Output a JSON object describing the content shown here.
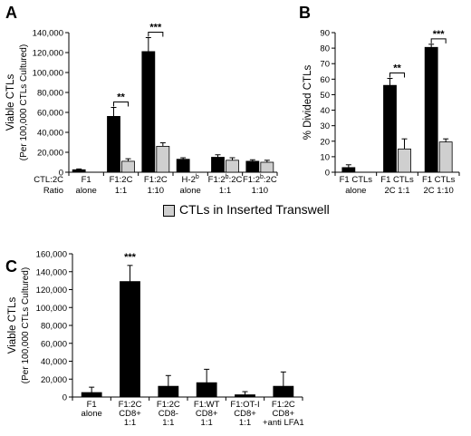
{
  "colors": {
    "black_bar": "#000000",
    "gray_bar": "#cfcfcf",
    "axis": "#000000"
  },
  "legend": {
    "label": "CTLs in Inserted Transwell"
  },
  "chart_data": [
    {
      "id": "A",
      "panel_letter": "A",
      "type": "bar",
      "ylabel": "Viable CTLs",
      "ylabel_sub": "(Per 100,000 CTLs Cultured)",
      "ylim": [
        0,
        140000
      ],
      "yticks": [
        "0",
        "20,000",
        "40,000",
        "60,000",
        "80,000",
        "100,000",
        "120,000",
        "140,000"
      ],
      "row_header": [
        "CTL:2C",
        "Ratio"
      ],
      "categories": [
        [
          "F1",
          "alone"
        ],
        [
          "F1:2C",
          "1:1"
        ],
        [
          "F1:2C",
          "1:10"
        ],
        [
          "H-2",
          "alone"
        ],
        [
          "F1:2",
          ":2C",
          "1:1"
        ],
        [
          "F1:2",
          ":2C",
          "1:10"
        ]
      ],
      "category_superscripts": [
        "",
        "",
        "",
        "b",
        "b",
        "b"
      ],
      "series": [
        {
          "values": [
            2500,
            56000,
            121000,
            13000,
            15000,
            11000
          ],
          "errors": [
            800,
            9000,
            14000,
            1500,
            2500,
            1500
          ]
        },
        {
          "values": [
            null,
            11000,
            26000,
            null,
            12000,
            10000
          ],
          "errors": [
            null,
            2500,
            3500,
            null,
            2500,
            2000
          ]
        }
      ],
      "significance": [
        {
          "category_index": 1,
          "label": "**"
        },
        {
          "category_index": 2,
          "label": "***"
        }
      ]
    },
    {
      "id": "B",
      "panel_letter": "B",
      "type": "bar",
      "ylabel": "% Divided CTLs",
      "ylim": [
        0,
        90
      ],
      "yticks": [
        "0",
        "10",
        "20",
        "30",
        "40",
        "50",
        "60",
        "70",
        "80",
        "90"
      ],
      "categories": [
        [
          "F1 CTLs",
          "alone"
        ],
        [
          "F1 CTLs",
          "2C 1:1"
        ],
        [
          "F1 CTLs",
          "2C 1:10"
        ]
      ],
      "series": [
        {
          "values": [
            3,
            56,
            80.5
          ],
          "errors": [
            1.8,
            4.5,
            2
          ]
        },
        {
          "values": [
            null,
            15,
            19.5
          ],
          "errors": [
            null,
            6.5,
            2
          ]
        }
      ],
      "significance": [
        {
          "category_index": 1,
          "label": "**"
        },
        {
          "category_index": 2,
          "label": "***"
        }
      ]
    },
    {
      "id": "C",
      "panel_letter": "C",
      "type": "bar",
      "ylabel": "Viable CTLs",
      "ylabel_sub": "(Per 100,000 CTLs Cultured)",
      "ylim": [
        0,
        160000
      ],
      "yticks": [
        "0",
        "20,000",
        "40,000",
        "60,000",
        "80,000",
        "100,000",
        "120,000",
        "140,000",
        "160,000"
      ],
      "categories": [
        [
          "F1",
          "alone"
        ],
        [
          "F1:2C",
          "CD8+",
          "1:1"
        ],
        [
          "F1:2C",
          "CD8-",
          "1:1"
        ],
        [
          "F1:WT",
          "CD8+",
          "1:1"
        ],
        [
          "F1:OT-I",
          "CD8+",
          "1:1"
        ],
        [
          "F1:2C",
          "CD8+",
          "+anti LFA1"
        ]
      ],
      "series": [
        {
          "values": [
            5000,
            129000,
            12000,
            16000,
            2500,
            12000
          ],
          "errors": [
            6000,
            18000,
            12000,
            15000,
            3500,
            16000
          ]
        }
      ],
      "significance": [
        {
          "category_index": 1,
          "label": "***"
        }
      ]
    }
  ]
}
